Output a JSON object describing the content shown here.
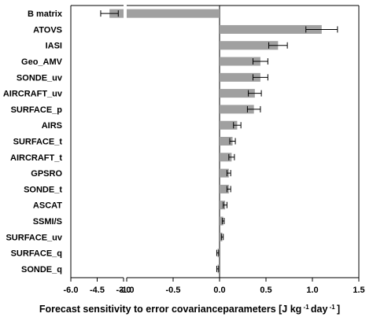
{
  "chart_data": {
    "type": "bar",
    "orientation": "horizontal",
    "title": "",
    "xlabel_parts": [
      "Forecast sensitivity to error covarianceparameters [J kg",
      "-1",
      " day",
      "-1",
      "]"
    ],
    "ylabel": "",
    "categories": [
      "B matrix",
      "ATOVS",
      "IASI",
      "Geo_AMV",
      "SONDE_uv",
      "AIRCRAFT_uv",
      "SURFACE_p",
      "AIRS",
      "SURFACE_t",
      "AIRCRAFT_t",
      "GPSRO",
      "SONDE_t",
      "ASCAT",
      "SSMI/S",
      "SURFACE_uv",
      "SURFACE_q",
      "SONDE_q"
    ],
    "values": [
      -3.8,
      1.1,
      0.63,
      0.44,
      0.44,
      0.38,
      0.37,
      0.19,
      0.14,
      0.13,
      0.1,
      0.1,
      0.06,
      0.04,
      0.03,
      -0.02,
      -0.02
    ],
    "errors": [
      0.5,
      0.17,
      0.1,
      0.08,
      0.08,
      0.07,
      0.07,
      0.04,
      0.03,
      0.03,
      0.02,
      0.02,
      0.02,
      0.01,
      0.01,
      0.01,
      0.01
    ],
    "x_ticks": [
      "-6.0",
      "-4.5",
      "-3.0",
      "-1.0",
      "-0.5",
      "0.0",
      "0.5",
      "1.0",
      "1.5"
    ],
    "broken_axis": {
      "left_segment": [
        -6.0,
        -3.0
      ],
      "right_segment": [
        -1.0,
        1.5
      ]
    },
    "bar_color": "#a0a0a0",
    "grid": false,
    "zero_line": true
  }
}
